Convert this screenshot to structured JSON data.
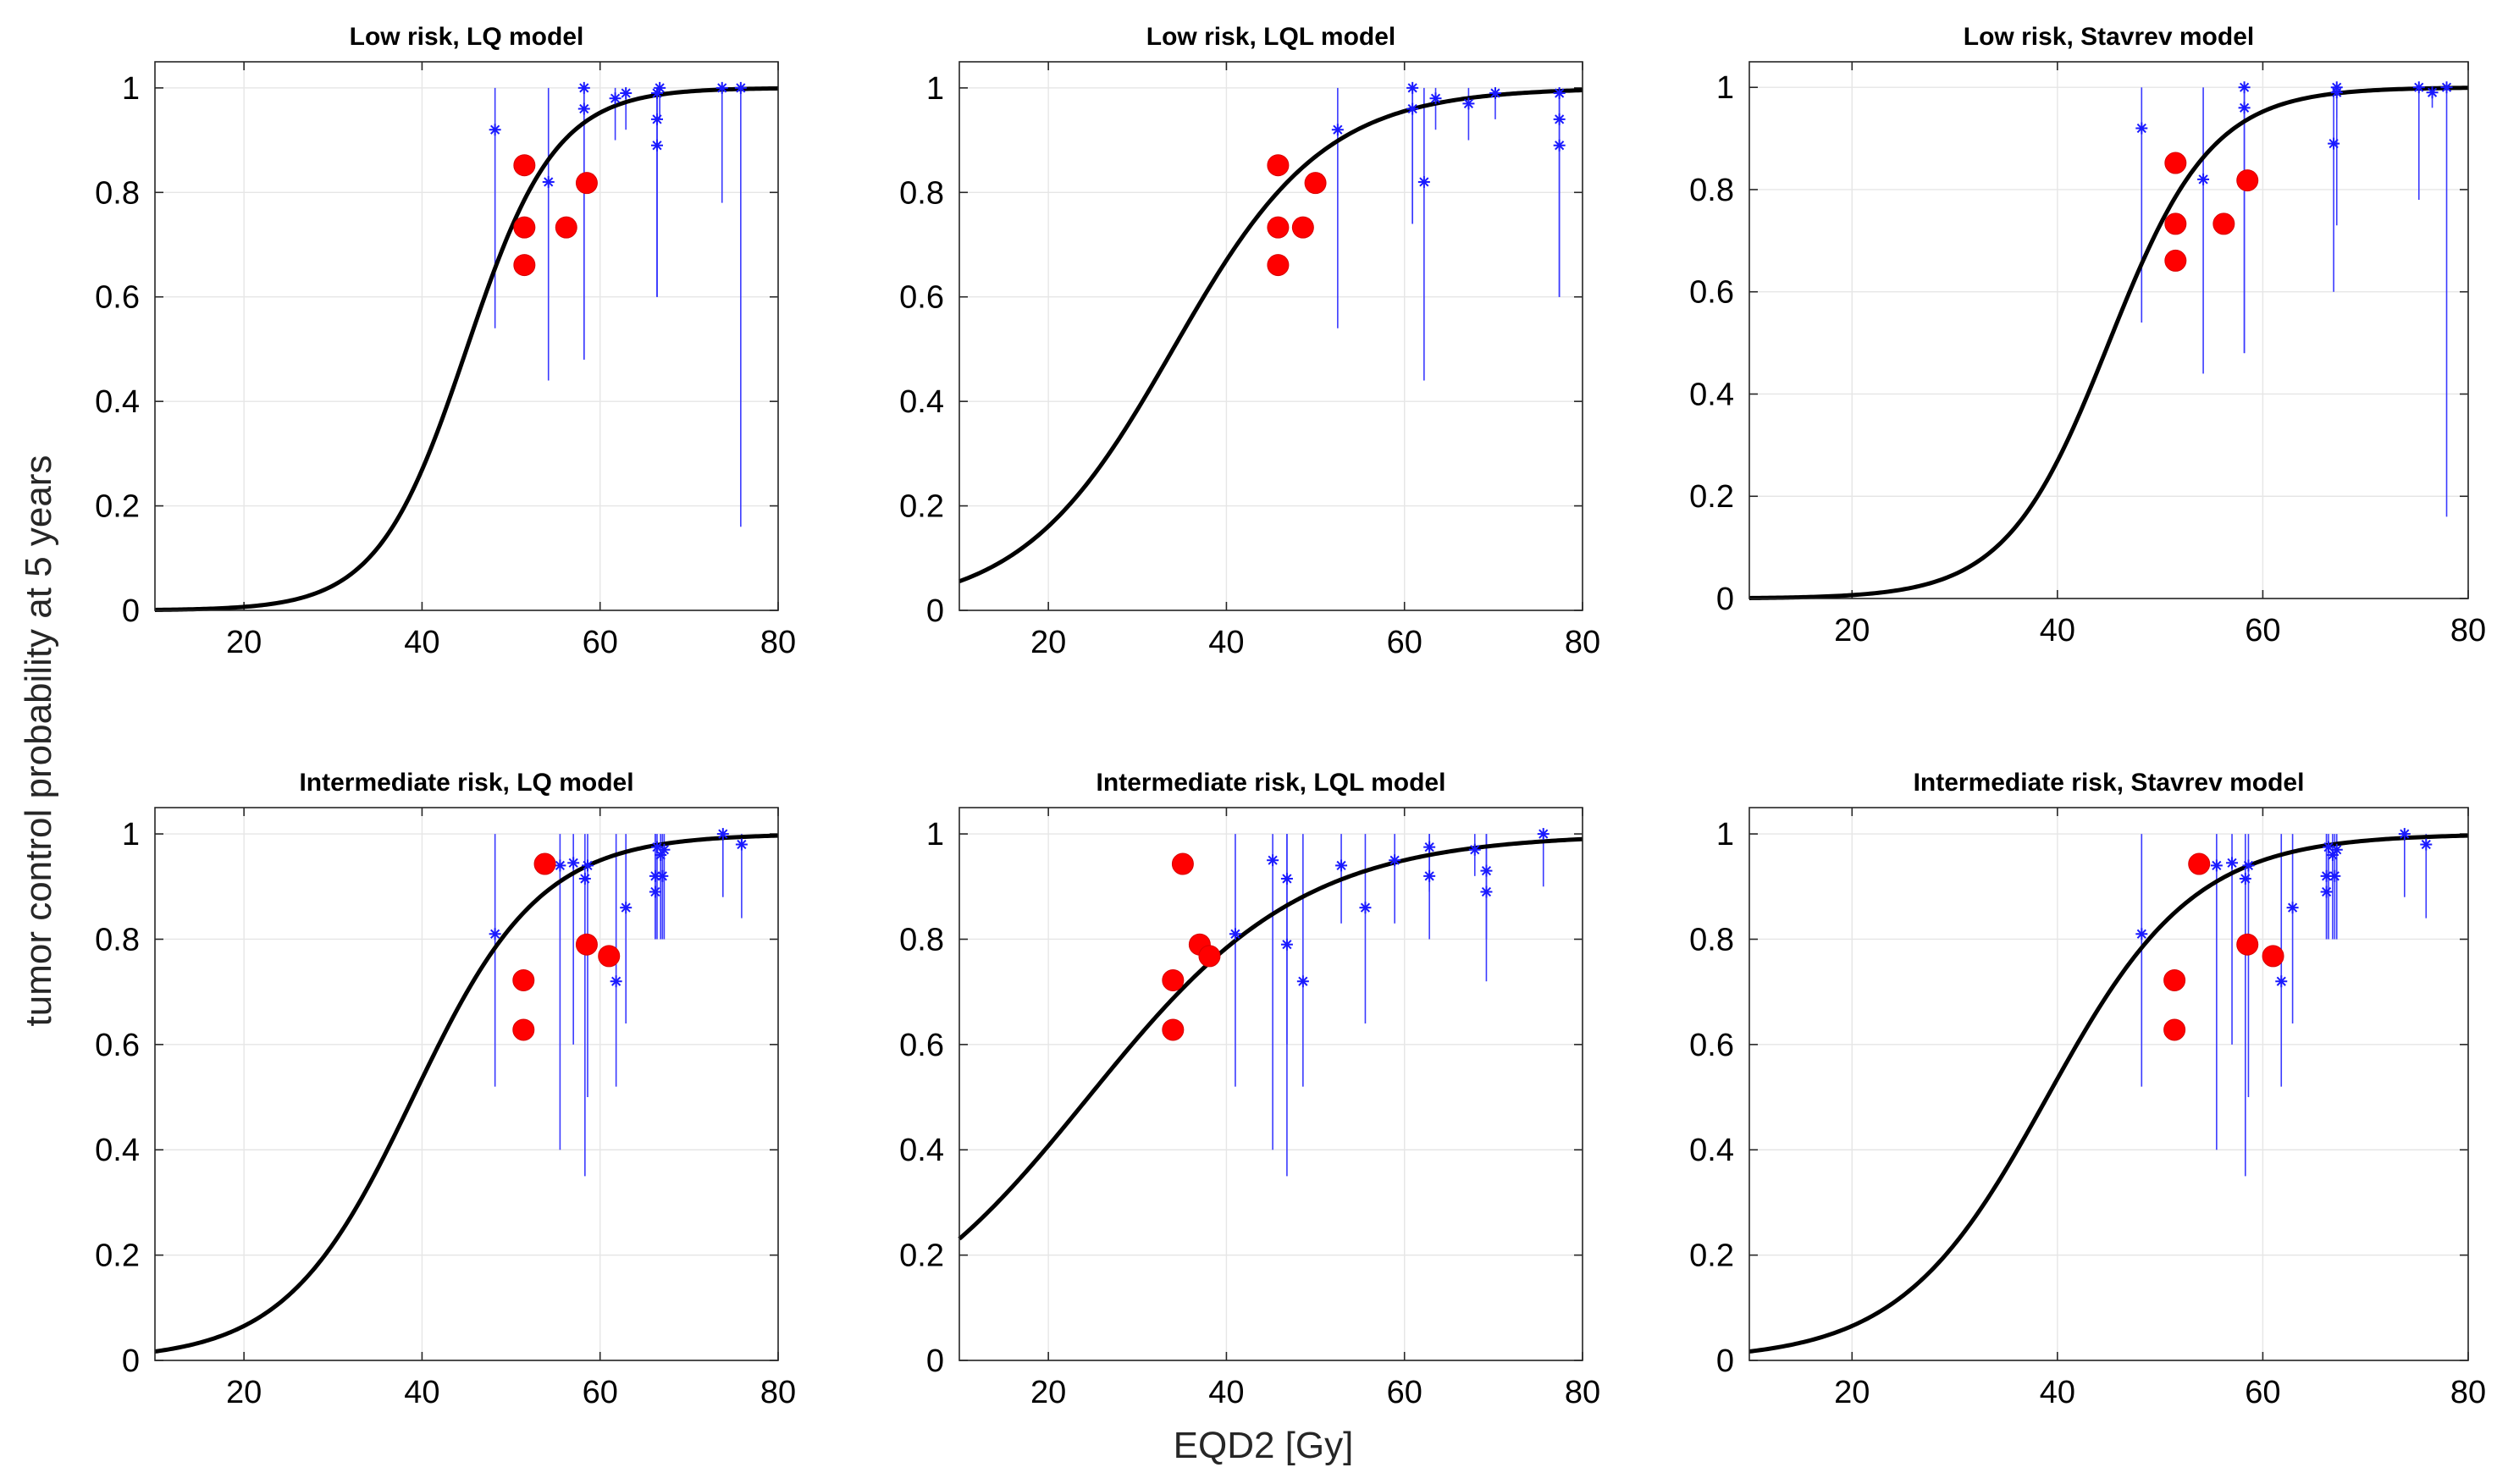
{
  "figure": {
    "ylabel": "tumor control probability at 5 years",
    "xlabel": "EQD2 [Gy]"
  },
  "chart_data": [
    {
      "type": "scatter",
      "title": "Low risk, LQ model",
      "xlabel": "",
      "ylabel": "",
      "xlim": [
        10,
        80
      ],
      "ylim": [
        0,
        1.05
      ],
      "xticks": [
        "20",
        "40",
        "60",
        "80"
      ],
      "yticks": [
        "0",
        "0.2",
        "0.4",
        "0.6",
        "0.8",
        "1"
      ],
      "curve": {
        "name": "model fit",
        "d50": 45,
        "k": 0.2
      },
      "highlight_points": {
        "name": "red markers",
        "x": [
          51.5,
          51.5,
          51.5,
          56.2,
          58.5
        ],
        "y": [
          0.852,
          0.733,
          0.661,
          0.733,
          0.818
        ]
      },
      "study_points": {
        "name": "blue asterisks",
        "x": [
          48.2,
          54.2,
          58.2,
          58.2,
          61.7,
          62.9,
          66.4,
          66.4,
          66.4,
          66.7,
          73.7,
          75.8
        ],
        "y": [
          0.92,
          0.82,
          1.0,
          0.96,
          0.98,
          0.99,
          0.99,
          0.94,
          0.89,
          1.0,
          1.0,
          1.0
        ],
        "lower": [
          0.54,
          0.44,
          0.48,
          0.48,
          0.9,
          0.92,
          0.6,
          0.6,
          0.6,
          0.94,
          0.78,
          0.16
        ]
      }
    },
    {
      "type": "scatter",
      "title": "Low risk, LQL model",
      "xlabel": "",
      "ylabel": "",
      "xlim": [
        10,
        80
      ],
      "ylim": [
        0,
        1.05
      ],
      "xticks": [
        "20",
        "40",
        "60",
        "80"
      ],
      "yticks": [
        "0",
        "0.2",
        "0.4",
        "0.6",
        "0.8",
        "1"
      ],
      "curve": {
        "name": "model fit",
        "d50": 34,
        "k": 0.118
      },
      "highlight_points": {
        "name": "red markers",
        "x": [
          45.8,
          45.8,
          45.8,
          48.6,
          50.0
        ],
        "y": [
          0.852,
          0.733,
          0.661,
          0.733,
          0.818
        ]
      },
      "study_points": {
        "name": "blue asterisks",
        "x": [
          52.5,
          60.9,
          60.9,
          62.2,
          63.5,
          67.2,
          70.2,
          77.4,
          77.4,
          77.4
        ],
        "y": [
          0.92,
          1.0,
          0.96,
          0.82,
          0.98,
          0.97,
          0.99,
          0.99,
          0.94,
          0.89
        ],
        "lower": [
          0.54,
          0.74,
          0.74,
          0.44,
          0.92,
          0.9,
          0.94,
          0.6,
          0.6,
          0.6
        ]
      }
    },
    {
      "type": "scatter",
      "title": "Low risk, Stavrev model",
      "xlabel": "",
      "ylabel": "",
      "xlim": [
        10,
        80
      ],
      "ylim": [
        0,
        1.05
      ],
      "xticks": [
        "20",
        "40",
        "60",
        "80"
      ],
      "yticks": [
        "0",
        "0.2",
        "0.4",
        "0.6",
        "0.8",
        "1"
      ],
      "curve": {
        "name": "model fit",
        "d50": 45,
        "k": 0.2
      },
      "highlight_points": {
        "name": "red markers",
        "x": [
          51.5,
          51.5,
          51.5,
          56.2,
          58.5
        ],
        "y": [
          0.852,
          0.733,
          0.661,
          0.733,
          0.818
        ]
      },
      "study_points": {
        "name": "blue asterisks",
        "x": [
          48.2,
          54.2,
          58.2,
          58.2,
          66.9,
          67.2,
          67.2,
          75.2,
          76.5,
          77.9
        ],
        "y": [
          0.92,
          0.82,
          1.0,
          0.96,
          0.89,
          0.99,
          1.0,
          1.0,
          0.99,
          1.0
        ],
        "lower": [
          0.54,
          0.44,
          0.48,
          0.48,
          0.6,
          0.73,
          0.94,
          0.78,
          0.96,
          0.16
        ]
      }
    },
    {
      "type": "scatter",
      "title": "Intermediate risk, LQ model",
      "xlabel": "",
      "ylabel": "",
      "xlim": [
        10,
        80
      ],
      "ylim": [
        0,
        1.05
      ],
      "xticks": [
        "20",
        "40",
        "60",
        "80"
      ],
      "yticks": [
        "0",
        "0.2",
        "0.4",
        "0.6",
        "0.8",
        "1"
      ],
      "curve": {
        "name": "model fit",
        "d50": 39,
        "k": 0.14
      },
      "highlight_points": {
        "name": "red markers",
        "x": [
          51.4,
          51.4,
          53.8,
          58.5,
          61.0
        ],
        "y": [
          0.722,
          0.628,
          0.943,
          0.79,
          0.768
        ]
      },
      "study_points": {
        "name": "blue asterisks",
        "x": [
          48.2,
          55.5,
          57.0,
          58.3,
          58.6,
          61.8,
          62.9,
          66.2,
          66.2,
          66.4,
          66.8,
          67.0,
          67.2,
          73.8,
          75.9
        ],
        "y": [
          0.81,
          0.94,
          0.945,
          0.915,
          0.94,
          0.72,
          0.86,
          0.89,
          0.92,
          0.975,
          0.96,
          0.92,
          0.97,
          1.0,
          0.98
        ],
        "lower": [
          0.52,
          0.4,
          0.6,
          0.35,
          0.5,
          0.52,
          0.64,
          0.8,
          0.8,
          0.8,
          0.8,
          0.8,
          0.8,
          0.88,
          0.84
        ]
      }
    },
    {
      "type": "scatter",
      "title": "Intermediate risk, LQL model",
      "xlabel": "",
      "ylabel": "",
      "xlim": [
        10,
        80
      ],
      "ylim": [
        0,
        1.05
      ],
      "xticks": [
        "20",
        "40",
        "60",
        "80"
      ],
      "yticks": [
        "0",
        "0.2",
        "0.4",
        "0.6",
        "0.8",
        "1"
      ],
      "curve": {
        "name": "model fit",
        "d50": 24.5,
        "k": 0.083
      },
      "highlight_points": {
        "name": "red markers",
        "x": [
          34.0,
          34.0,
          35.1,
          37.0,
          38.1
        ],
        "y": [
          0.722,
          0.628,
          0.943,
          0.79,
          0.768
        ]
      },
      "study_points": {
        "name": "blue asterisks",
        "x": [
          41.0,
          45.2,
          46.8,
          46.8,
          48.6,
          52.9,
          55.6,
          58.9,
          62.8,
          62.8,
          67.9,
          69.2,
          69.2,
          75.6
        ],
        "y": [
          0.81,
          0.95,
          0.915,
          0.79,
          0.72,
          0.94,
          0.86,
          0.95,
          0.92,
          0.975,
          0.97,
          0.93,
          0.89,
          1.0
        ],
        "lower": [
          0.52,
          0.4,
          0.6,
          0.35,
          0.52,
          0.83,
          0.64,
          0.83,
          0.8,
          0.89,
          0.92,
          0.8,
          0.72,
          0.9
        ]
      }
    },
    {
      "type": "scatter",
      "title": "Intermediate risk, Stavrev model",
      "xlabel": "",
      "ylabel": "",
      "xlim": [
        10,
        80
      ],
      "ylim": [
        0,
        1.05
      ],
      "xticks": [
        "20",
        "40",
        "60",
        "80"
      ],
      "yticks": [
        "0",
        "0.2",
        "0.4",
        "0.6",
        "0.8",
        "1"
      ],
      "curve": {
        "name": "model fit",
        "d50": 39,
        "k": 0.14
      },
      "highlight_points": {
        "name": "red markers",
        "x": [
          51.4,
          51.4,
          53.8,
          58.5,
          61.0
        ],
        "y": [
          0.722,
          0.628,
          0.943,
          0.79,
          0.768
        ]
      },
      "study_points": {
        "name": "blue asterisks",
        "x": [
          48.2,
          55.5,
          57.0,
          58.3,
          58.6,
          61.8,
          62.9,
          66.2,
          66.2,
          66.4,
          66.8,
          67.0,
          67.2,
          73.8,
          75.9
        ],
        "y": [
          0.81,
          0.94,
          0.945,
          0.915,
          0.94,
          0.72,
          0.86,
          0.89,
          0.92,
          0.975,
          0.96,
          0.92,
          0.97,
          1.0,
          0.98
        ],
        "lower": [
          0.52,
          0.4,
          0.6,
          0.35,
          0.5,
          0.52,
          0.64,
          0.8,
          0.8,
          0.8,
          0.8,
          0.8,
          0.8,
          0.88,
          0.84
        ]
      }
    }
  ]
}
